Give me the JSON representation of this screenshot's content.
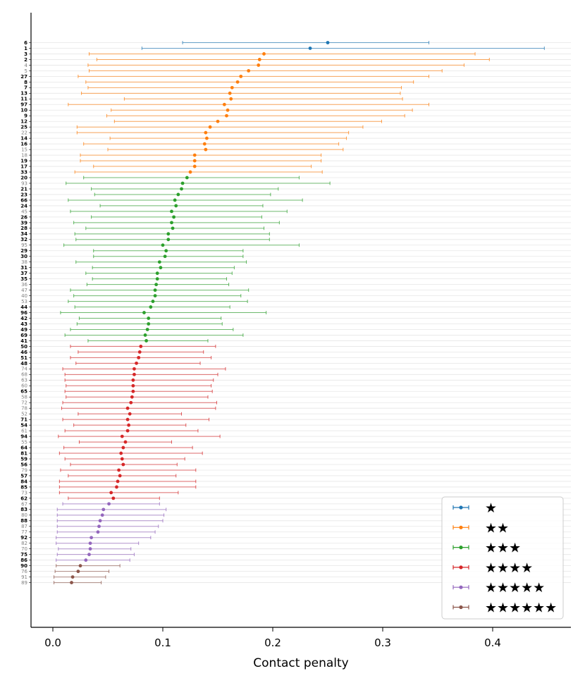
{
  "chart_data": {
    "type": "errorbar-dot",
    "xlabel": "Contact penalty",
    "ylabel": "",
    "xlim": [
      -0.02,
      0.468
    ],
    "xticks": [
      0.0,
      0.1,
      0.2,
      0.3,
      0.4
    ],
    "xtick_labels": [
      "0.0",
      "0.1",
      "0.2",
      "0.3",
      "0.4"
    ],
    "grid": "horizontal",
    "legend_position": "bottom-right",
    "series": [
      {
        "name": "★",
        "color": "#1f77b4",
        "rows": [
          {
            "label": "6",
            "bold": true,
            "value": 0.25,
            "low": 0.118,
            "high": 0.342
          },
          {
            "label": "1",
            "bold": true,
            "value": 0.234,
            "low": 0.081,
            "high": 0.447
          }
        ]
      },
      {
        "name": "★★",
        "color": "#ff7f0e",
        "rows": [
          {
            "label": "3",
            "bold": true,
            "value": 0.192,
            "low": 0.033,
            "high": 0.384
          },
          {
            "label": "2",
            "bold": true,
            "value": 0.188,
            "low": 0.04,
            "high": 0.397
          },
          {
            "label": "4",
            "bold": false,
            "value": 0.187,
            "low": 0.032,
            "high": 0.374
          },
          {
            "label": "5",
            "bold": false,
            "value": 0.178,
            "low": 0.033,
            "high": 0.354
          },
          {
            "label": "27",
            "bold": true,
            "value": 0.171,
            "low": 0.023,
            "high": 0.342
          },
          {
            "label": "8",
            "bold": true,
            "value": 0.168,
            "low": 0.03,
            "high": 0.328
          },
          {
            "label": "7",
            "bold": true,
            "value": 0.163,
            "low": 0.032,
            "high": 0.317
          },
          {
            "label": "13",
            "bold": true,
            "value": 0.161,
            "low": 0.026,
            "high": 0.316
          },
          {
            "label": "11",
            "bold": true,
            "value": 0.162,
            "low": 0.065,
            "high": 0.318
          },
          {
            "label": "97",
            "bold": true,
            "value": 0.156,
            "low": 0.014,
            "high": 0.342
          },
          {
            "label": "10",
            "bold": true,
            "value": 0.159,
            "low": 0.053,
            "high": 0.327
          },
          {
            "label": "9",
            "bold": true,
            "value": 0.158,
            "low": 0.049,
            "high": 0.32
          },
          {
            "label": "12",
            "bold": true,
            "value": 0.15,
            "low": 0.056,
            "high": 0.299
          },
          {
            "label": "25",
            "bold": true,
            "value": 0.143,
            "low": 0.022,
            "high": 0.282
          },
          {
            "label": "22",
            "bold": false,
            "value": 0.139,
            "low": 0.022,
            "high": 0.269
          },
          {
            "label": "14",
            "bold": true,
            "value": 0.14,
            "low": 0.052,
            "high": 0.267
          },
          {
            "label": "16",
            "bold": true,
            "value": 0.138,
            "low": 0.028,
            "high": 0.26
          },
          {
            "label": "15",
            "bold": false,
            "value": 0.139,
            "low": 0.05,
            "high": 0.264
          },
          {
            "label": "18",
            "bold": false,
            "value": 0.129,
            "low": 0.025,
            "high": 0.244
          },
          {
            "label": "19",
            "bold": true,
            "value": 0.129,
            "low": 0.025,
            "high": 0.244
          },
          {
            "label": "17",
            "bold": true,
            "value": 0.129,
            "low": 0.037,
            "high": 0.235
          },
          {
            "label": "33",
            "bold": true,
            "value": 0.125,
            "low": 0.02,
            "high": 0.245
          }
        ]
      },
      {
        "name": "★★★",
        "color": "#2ca02c",
        "rows": [
          {
            "label": "20",
            "bold": true,
            "value": 0.122,
            "low": 0.028,
            "high": 0.224
          },
          {
            "label": "93",
            "bold": false,
            "value": 0.118,
            "low": 0.012,
            "high": 0.252
          },
          {
            "label": "21",
            "bold": true,
            "value": 0.117,
            "low": 0.035,
            "high": 0.205
          },
          {
            "label": "23",
            "bold": true,
            "value": 0.114,
            "low": 0.038,
            "high": 0.198
          },
          {
            "label": "66",
            "bold": true,
            "value": 0.111,
            "low": 0.014,
            "high": 0.227
          },
          {
            "label": "24",
            "bold": true,
            "value": 0.112,
            "low": 0.043,
            "high": 0.191
          },
          {
            "label": "45",
            "bold": false,
            "value": 0.108,
            "low": 0.016,
            "high": 0.213
          },
          {
            "label": "26",
            "bold": true,
            "value": 0.11,
            "low": 0.035,
            "high": 0.19
          },
          {
            "label": "39",
            "bold": true,
            "value": 0.108,
            "low": 0.019,
            "high": 0.206
          },
          {
            "label": "28",
            "bold": true,
            "value": 0.109,
            "low": 0.03,
            "high": 0.192
          },
          {
            "label": "34",
            "bold": true,
            "value": 0.105,
            "low": 0.02,
            "high": 0.197
          },
          {
            "label": "32",
            "bold": true,
            "value": 0.105,
            "low": 0.021,
            "high": 0.197
          },
          {
            "label": "95",
            "bold": false,
            "value": 0.1,
            "low": 0.01,
            "high": 0.224
          },
          {
            "label": "29",
            "bold": true,
            "value": 0.103,
            "low": 0.037,
            "high": 0.173
          },
          {
            "label": "30",
            "bold": true,
            "value": 0.102,
            "low": 0.037,
            "high": 0.173
          },
          {
            "label": "38",
            "bold": false,
            "value": 0.097,
            "low": 0.021,
            "high": 0.176
          },
          {
            "label": "31",
            "bold": true,
            "value": 0.098,
            "low": 0.036,
            "high": 0.165
          },
          {
            "label": "37",
            "bold": true,
            "value": 0.095,
            "low": 0.03,
            "high": 0.163
          },
          {
            "label": "35",
            "bold": true,
            "value": 0.095,
            "low": 0.036,
            "high": 0.158
          },
          {
            "label": "36",
            "bold": false,
            "value": 0.094,
            "low": 0.031,
            "high": 0.16
          },
          {
            "label": "47",
            "bold": false,
            "value": 0.093,
            "low": 0.016,
            "high": 0.178
          },
          {
            "label": "40",
            "bold": false,
            "value": 0.093,
            "low": 0.019,
            "high": 0.171
          },
          {
            "label": "53",
            "bold": false,
            "value": 0.091,
            "low": 0.014,
            "high": 0.177
          },
          {
            "label": "44",
            "bold": true,
            "value": 0.089,
            "low": 0.02,
            "high": 0.161
          },
          {
            "label": "96",
            "bold": true,
            "value": 0.083,
            "low": 0.007,
            "high": 0.194
          },
          {
            "label": "42",
            "bold": true,
            "value": 0.087,
            "low": 0.024,
            "high": 0.153
          },
          {
            "label": "43",
            "bold": true,
            "value": 0.087,
            "low": 0.022,
            "high": 0.154
          },
          {
            "label": "49",
            "bold": true,
            "value": 0.086,
            "low": 0.016,
            "high": 0.164
          },
          {
            "label": "69",
            "bold": true,
            "value": 0.084,
            "low": 0.011,
            "high": 0.173
          },
          {
            "label": "41",
            "bold": true,
            "value": 0.085,
            "low": 0.032,
            "high": 0.141
          }
        ]
      },
      {
        "name": "★★★★",
        "color": "#d62728",
        "rows": [
          {
            "label": "50",
            "bold": true,
            "value": 0.08,
            "low": 0.016,
            "high": 0.148
          },
          {
            "label": "46",
            "bold": true,
            "value": 0.079,
            "low": 0.023,
            "high": 0.137
          },
          {
            "label": "51",
            "bold": true,
            "value": 0.078,
            "low": 0.016,
            "high": 0.144
          },
          {
            "label": "48",
            "bold": true,
            "value": 0.076,
            "low": 0.021,
            "high": 0.134
          },
          {
            "label": "74",
            "bold": false,
            "value": 0.074,
            "low": 0.009,
            "high": 0.157
          },
          {
            "label": "68",
            "bold": false,
            "value": 0.074,
            "low": 0.011,
            "high": 0.15
          },
          {
            "label": "63",
            "bold": false,
            "value": 0.073,
            "low": 0.011,
            "high": 0.146
          },
          {
            "label": "60",
            "bold": false,
            "value": 0.073,
            "low": 0.012,
            "high": 0.144
          },
          {
            "label": "65",
            "bold": true,
            "value": 0.073,
            "low": 0.011,
            "high": 0.145
          },
          {
            "label": "58",
            "bold": false,
            "value": 0.072,
            "low": 0.012,
            "high": 0.141
          },
          {
            "label": "72",
            "bold": false,
            "value": 0.071,
            "low": 0.009,
            "high": 0.149
          },
          {
            "label": "78",
            "bold": false,
            "value": 0.068,
            "low": 0.008,
            "high": 0.148
          },
          {
            "label": "52",
            "bold": false,
            "value": 0.07,
            "low": 0.023,
            "high": 0.117
          },
          {
            "label": "71",
            "bold": true,
            "value": 0.068,
            "low": 0.009,
            "high": 0.142
          },
          {
            "label": "54",
            "bold": true,
            "value": 0.069,
            "low": 0.019,
            "high": 0.121
          },
          {
            "label": "61",
            "bold": false,
            "value": 0.068,
            "low": 0.011,
            "high": 0.132
          },
          {
            "label": "94",
            "bold": true,
            "value": 0.063,
            "low": 0.005,
            "high": 0.152
          },
          {
            "label": "55",
            "bold": false,
            "value": 0.066,
            "low": 0.024,
            "high": 0.108
          },
          {
            "label": "64",
            "bold": true,
            "value": 0.064,
            "low": 0.01,
            "high": 0.127
          },
          {
            "label": "81",
            "bold": true,
            "value": 0.062,
            "low": 0.006,
            "high": 0.136
          },
          {
            "label": "59",
            "bold": true,
            "value": 0.063,
            "low": 0.011,
            "high": 0.12
          },
          {
            "label": "56",
            "bold": true,
            "value": 0.064,
            "low": 0.016,
            "high": 0.113
          },
          {
            "label": "79",
            "bold": false,
            "value": 0.06,
            "low": 0.007,
            "high": 0.13
          },
          {
            "label": "57",
            "bold": true,
            "value": 0.061,
            "low": 0.014,
            "high": 0.112
          },
          {
            "label": "84",
            "bold": true,
            "value": 0.059,
            "low": 0.006,
            "high": 0.13
          },
          {
            "label": "85",
            "bold": true,
            "value": 0.058,
            "low": 0.006,
            "high": 0.13
          },
          {
            "label": "73",
            "bold": false,
            "value": 0.053,
            "low": 0.006,
            "high": 0.114
          },
          {
            "label": "62",
            "bold": true,
            "value": 0.055,
            "low": 0.014,
            "high": 0.097
          }
        ]
      },
      {
        "name": "★★★★★",
        "color": "#9467bd",
        "rows": [
          {
            "label": "67",
            "bold": false,
            "value": 0.051,
            "low": 0.009,
            "high": 0.097
          },
          {
            "label": "83",
            "bold": true,
            "value": 0.046,
            "low": 0.004,
            "high": 0.103
          },
          {
            "label": "80",
            "bold": false,
            "value": 0.045,
            "low": 0.004,
            "high": 0.101
          },
          {
            "label": "88",
            "bold": true,
            "value": 0.043,
            "low": 0.004,
            "high": 0.1
          },
          {
            "label": "87",
            "bold": false,
            "value": 0.042,
            "low": 0.004,
            "high": 0.096
          },
          {
            "label": "77",
            "bold": false,
            "value": 0.041,
            "low": 0.004,
            "high": 0.093
          },
          {
            "label": "92",
            "bold": true,
            "value": 0.035,
            "low": 0.003,
            "high": 0.089
          },
          {
            "label": "82",
            "bold": false,
            "value": 0.034,
            "low": 0.003,
            "high": 0.078
          },
          {
            "label": "70",
            "bold": false,
            "value": 0.034,
            "low": 0.005,
            "high": 0.071
          },
          {
            "label": "75",
            "bold": true,
            "value": 0.033,
            "low": 0.004,
            "high": 0.074
          },
          {
            "label": "86",
            "bold": true,
            "value": 0.03,
            "low": 0.003,
            "high": 0.07
          }
        ]
      },
      {
        "name": "★★★★★★",
        "color": "#8c564b",
        "rows": [
          {
            "label": "90",
            "bold": true,
            "value": 0.025,
            "low": 0.003,
            "high": 0.061
          },
          {
            "label": "76",
            "bold": false,
            "value": 0.023,
            "low": 0.002,
            "high": 0.051
          },
          {
            "label": "91",
            "bold": false,
            "value": 0.018,
            "low": 0.001,
            "high": 0.048
          },
          {
            "label": "89",
            "bold": false,
            "value": 0.017,
            "low": 0.001,
            "high": 0.044
          }
        ]
      }
    ]
  }
}
